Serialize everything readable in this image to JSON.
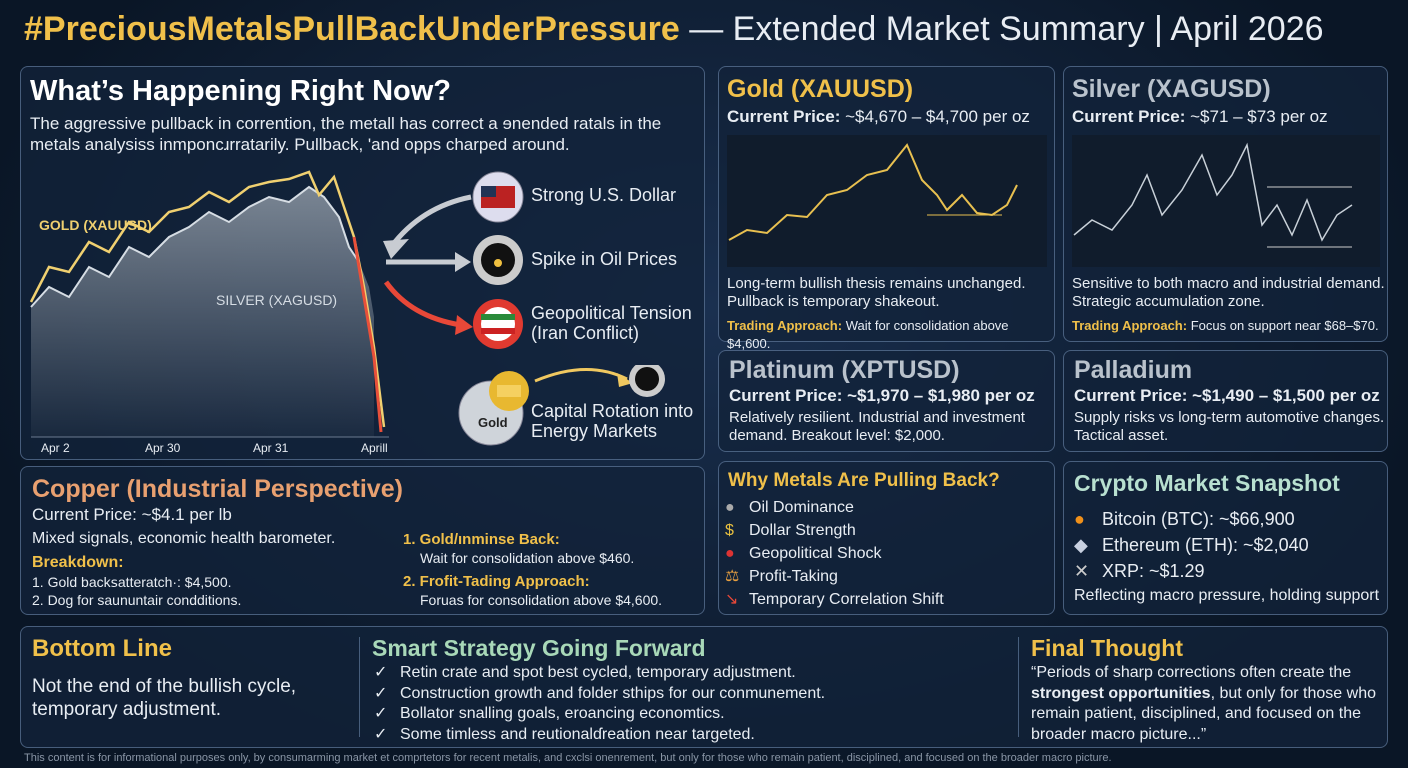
{
  "header": {
    "hashtag": "#PreciousMetalsPullBackUnderPressure",
    "title": "— Extended Market Summary | April 2026"
  },
  "main": {
    "heading": "What’s Happening Right Now?",
    "text": "The aggressive pullback in corrention, the metall has correct a ɘnended ratals in the metals analysiss inmponcɹrratarily. Pullback, 'and opps charped around.",
    "gold_label": "GOLD (XAUUSD)",
    "silver_label": "SILVER (XAGUSD)",
    "x_labels": [
      "Apr 2",
      "Apr 30",
      "Apr 31",
      "Aprill"
    ],
    "drivers": [
      "Strong U.S. Dollar",
      "Spike in Oil Prices",
      "Geopolitical Tension (Iran Conflict)",
      "Capital Rotation into Energy Markets"
    ],
    "gold_icon": "Gold"
  },
  "gold": {
    "title": "Gold (XAUUSD)",
    "price_label": "Current Price:",
    "price": "~$4,670 – $4,700 per oz",
    "lines": [
      "Long-term bullish thesis remains unchanged.",
      "Pullback is temporary shakeout."
    ],
    "approach_label": "Trading Approach:",
    "approach": "Wait for consolidation above $4,600."
  },
  "silver": {
    "title": "Silver (XAGUSD)",
    "price_label": "Current Price:",
    "price": "~$71 – $73 per oz",
    "lines": [
      "Sensitive to both macro and industrial demand.",
      "Strategic accumulation zone."
    ],
    "approach_label": "Trading Approach:",
    "approach": "Focus on support near $68–$70."
  },
  "platinum": {
    "title": "Platinum (XPTUSD)",
    "price_label": "Current Price:",
    "price": "~$1,970 – $1,980 per oz",
    "lines": [
      "Relatively resilient. Industrial and investment",
      "demand. Breakout level: $2,000."
    ]
  },
  "palladium": {
    "title": "Palladium",
    "price_label": "Current Price:",
    "price": "~$1,490 – $1,500 per oz",
    "lines": [
      "Supply risks vs long-term automotive changes.",
      "Tactical asset."
    ]
  },
  "copper": {
    "title": "Copper (Industrial Perspective)",
    "price_label": "Current Price:",
    "price": "~$4.1 per lb",
    "text": "Mixed signals, economic health barometer.",
    "breakdown_title": "Breakdown:",
    "breakdown": [
      "1. Gold backꜱatteratch·: $4,500.",
      "2. Dog for saununtair condditions."
    ],
    "steps": [
      {
        "title": "1. Gold/ınminse Back:",
        "text": "Wait for consolidation above $460."
      },
      {
        "title": "2. Frofit-Tading Approach:",
        "text": "Foruas for consolidation above $4,600."
      }
    ]
  },
  "why": {
    "title": "Why Metals Are Pulling Back?",
    "items": [
      "Oil Dominance",
      "Dollar Strength",
      "Geopolitical Shock",
      "Profit-Taking",
      "Temporary Correlation Shift"
    ]
  },
  "crypto": {
    "title": "Crypto Market Snapshot",
    "items": [
      "Bitcoin (BTC): ~$66,900",
      "Ethereum (ETH): ~$2,040",
      "XRP: ~$1.29"
    ],
    "note": "Reflecting macro pressure, holding support"
  },
  "bottom": {
    "bottom_line": {
      "title": "Bottom Line",
      "text": "Not the end of the bullish cycle, temporary adjustment."
    },
    "strategy": {
      "title": "Smart Strategy Going Forward",
      "items": [
        "Retin crate and spot best cycled, temporary adjustment.",
        "Construction growth and folder sthips for our conmunement.",
        "Bollator snalling goals, eroancing economtics.",
        "Some timless and reutionalɗreation near targeted."
      ]
    },
    "final": {
      "title": "Final Thought",
      "quote_start": "“Periods of sharp corrections often create the ",
      "quote_bold": "strongest opportunities",
      "quote_end": ", but only for those who remain patient, disciplined, and focused on the broader macro picture...”"
    }
  },
  "footer": "This content is for informational purposes only, by consumarming market et comprtetors for recent metalis, and cxclsi onenrement, but only for those who remain patient, disciplined, and focused on the broader macro picture."
}
